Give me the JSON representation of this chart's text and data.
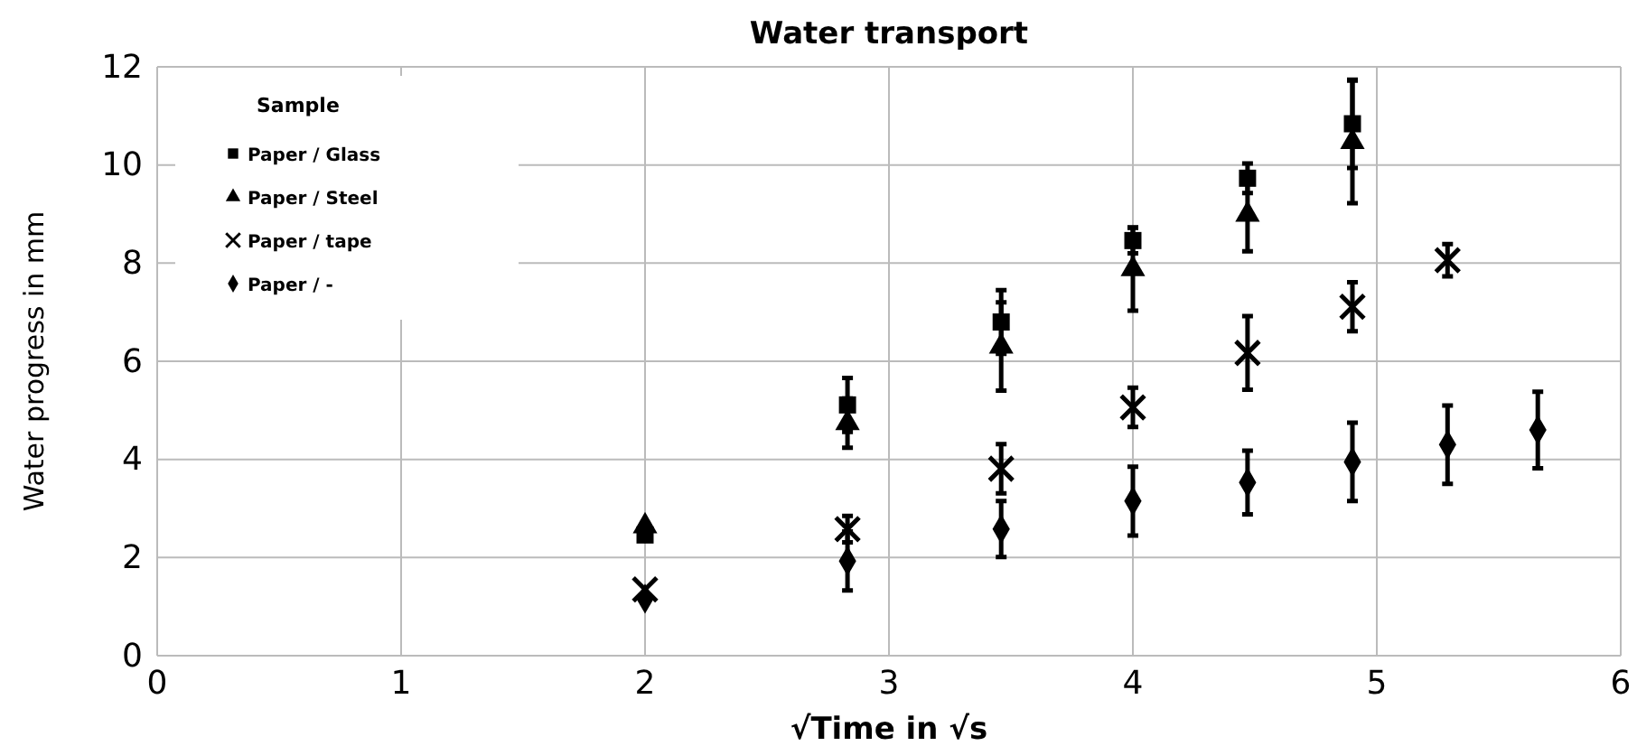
{
  "chart_data": {
    "type": "scatter",
    "title": "Water transport",
    "xlabel": "√Time in √s",
    "ylabel": "Water progress in mm",
    "legend_title": "Sample",
    "legend": "top left",
    "grid": true,
    "xlim": [
      0,
      6
    ],
    "xticks": [
      0,
      1,
      2,
      3,
      4,
      5,
      6
    ],
    "ylim": [
      0,
      12
    ],
    "yticks": [
      0,
      2,
      4,
      6,
      8,
      10,
      12
    ],
    "series": [
      {
        "name": "Paper / Glass",
        "color": "#000000",
        "marker": "square",
        "x": [
          2,
          2.83,
          3.46,
          4,
          4.47,
          4.9
        ],
        "values": [
          2.46,
          5.11,
          6.8,
          8.46,
          9.73,
          10.84
        ],
        "errors": [
          null,
          0.55,
          0.65,
          0.26,
          0.3,
          0.9
        ]
      },
      {
        "name": "Paper / Steel",
        "color": "#000000",
        "marker": "triangle",
        "x": [
          2,
          2.83,
          3.46,
          4,
          4.47,
          4.9
        ],
        "values": [
          2.64,
          4.74,
          6.3,
          7.88,
          8.99,
          10.47
        ],
        "errors": [
          null,
          0.5,
          0.9,
          0.85,
          0.75,
          1.25
        ]
      },
      {
        "name": "Paper / tape",
        "color": "#000000",
        "marker": "cross",
        "x": [
          2,
          2.83,
          3.46,
          4,
          4.47,
          4.9,
          5.29
        ],
        "values": [
          1.35,
          2.58,
          3.81,
          5.06,
          6.17,
          7.11,
          8.06
        ],
        "errors": [
          null,
          0.27,
          0.5,
          0.4,
          0.75,
          0.5,
          0.33
        ]
      },
      {
        "name": "Paper / -",
        "color": "#000000",
        "marker": "diamond",
        "x": [
          2,
          2.83,
          3.46,
          4,
          4.47,
          4.9,
          5.29,
          5.66
        ],
        "values": [
          1.16,
          1.93,
          2.58,
          3.15,
          3.53,
          3.95,
          4.3,
          4.6
        ],
        "errors": [
          null,
          0.6,
          0.57,
          0.7,
          0.65,
          0.8,
          0.8,
          0.78
        ]
      }
    ]
  }
}
